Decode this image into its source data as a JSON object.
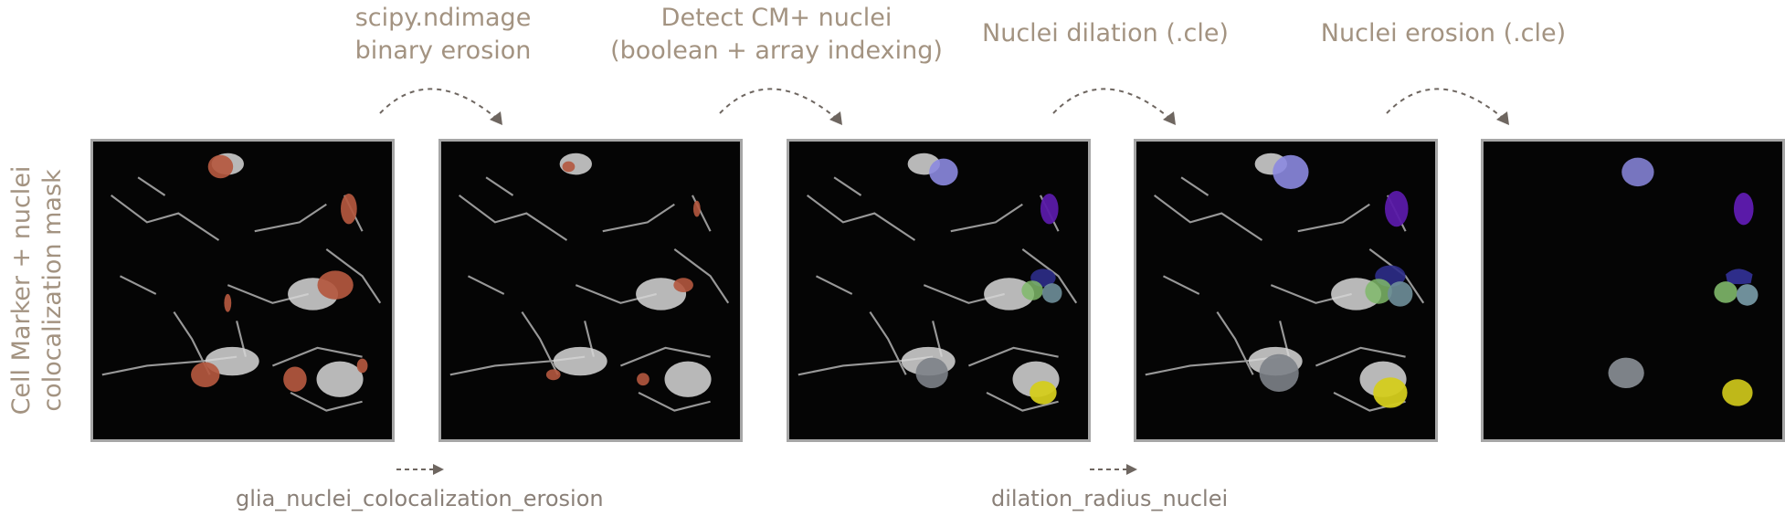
{
  "side_label": {
    "line1": "Cell Marker + nuclei",
    "line2": "colocalization mask"
  },
  "steps": [
    {
      "title_lines": [
        "scipy.ndimage",
        "binary erosion"
      ]
    },
    {
      "title_lines": [
        "Detect CM+ nuclei",
        "(boolean + array indexing)"
      ]
    },
    {
      "title_lines": [
        "Nuclei dilation (.cle)"
      ]
    },
    {
      "title_lines": [
        "Nuclei erosion (.cle)"
      ]
    }
  ],
  "params": [
    {
      "text": "glia_nuclei_colocalization_erosion"
    },
    {
      "text": "dilation_radius_nuclei"
    }
  ],
  "colors": {
    "text": "#a39381",
    "frame": "#a6a6a6",
    "nuclei_overlay": "#b4583f",
    "nucleus_lavender": "#8c8ae0",
    "nucleus_purple": "#5a1aa8",
    "nucleus_navy": "#2e2d8a",
    "nucleus_green": "#7fb86a",
    "nucleus_slate": "#6f8f9a",
    "nucleus_grey": "#7d8288",
    "nucleus_yellow": "#d4cc1c"
  },
  "panels": [
    {
      "name": "colocalization-mask-panel",
      "mode": "overlay"
    },
    {
      "name": "binary-erosion-panel",
      "mode": "overlay-eroded"
    },
    {
      "name": "cm-nuclei-panel",
      "mode": "labels"
    },
    {
      "name": "nuclei-dilation-panel",
      "mode": "labels-dilated"
    },
    {
      "name": "nuclei-erosion-panel",
      "mode": "labels-only"
    }
  ]
}
